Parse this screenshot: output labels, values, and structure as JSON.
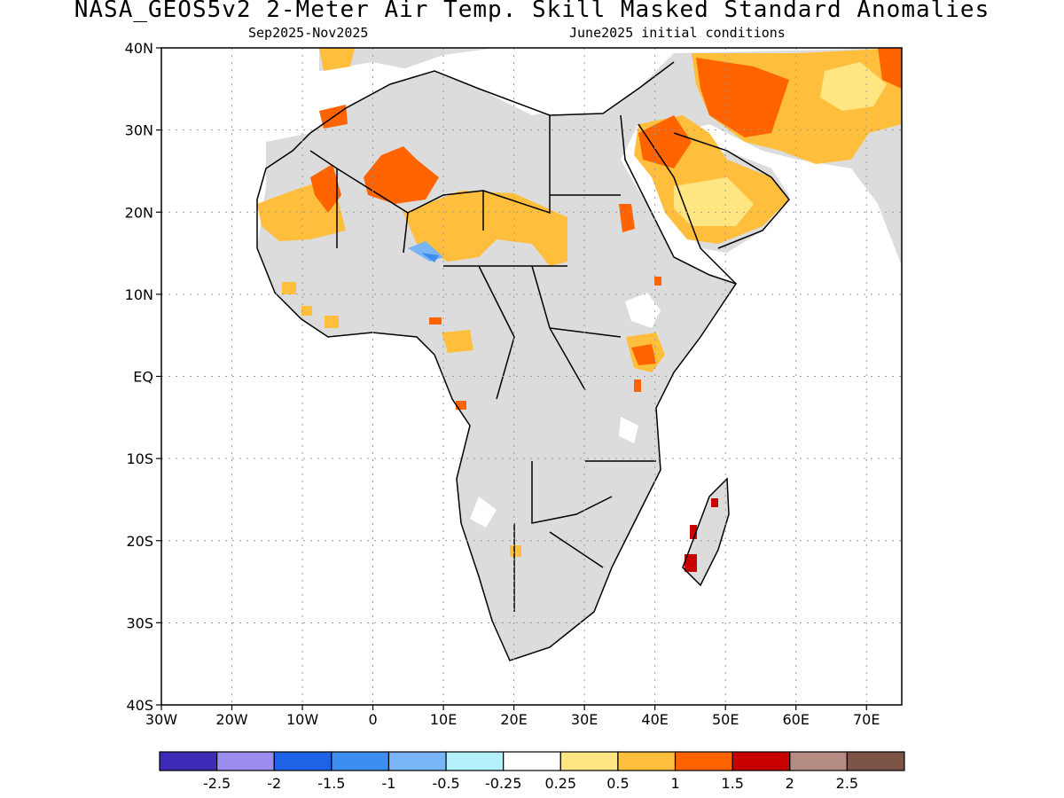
{
  "header": {
    "title": "NASA_GEOS5v2 2-Meter Air Temp. Skill Masked Standard Anomalies",
    "period": "Sep2025-Nov2025",
    "init": "June2025 initial conditions"
  },
  "map": {
    "lon_range": [
      -30,
      75
    ],
    "lat_range": [
      -40,
      40
    ],
    "lon_ticks": [
      {
        "value": -30,
        "label": "30W"
      },
      {
        "value": -20,
        "label": "20W"
      },
      {
        "value": -10,
        "label": "10W"
      },
      {
        "value": 0,
        "label": "0"
      },
      {
        "value": 10,
        "label": "10E"
      },
      {
        "value": 20,
        "label": "20E"
      },
      {
        "value": 30,
        "label": "30E"
      },
      {
        "value": 40,
        "label": "40E"
      },
      {
        "value": 50,
        "label": "50E"
      },
      {
        "value": 60,
        "label": "60E"
      },
      {
        "value": 70,
        "label": "70E"
      }
    ],
    "lat_ticks": [
      {
        "value": 40,
        "label": "40N"
      },
      {
        "value": 30,
        "label": "30N"
      },
      {
        "value": 20,
        "label": "20N"
      },
      {
        "value": 10,
        "label": "10N"
      },
      {
        "value": 0,
        "label": "EQ"
      },
      {
        "value": -10,
        "label": "10S"
      },
      {
        "value": -20,
        "label": "20S"
      },
      {
        "value": -30,
        "label": "30S"
      },
      {
        "value": -40,
        "label": "40S"
      }
    ],
    "colors": {
      "land_masked": "#dcdcdc",
      "ocean": "#ffffff",
      "coast": "#000000",
      "grid": "#9a9a9a"
    }
  },
  "colorbar": {
    "colors": [
      "#3d2bb8",
      "#9b8cf0",
      "#1e62e6",
      "#3c8ff0",
      "#78b4f6",
      "#b4f0fa",
      "#ffffff",
      "#ffe682",
      "#ffbe3c",
      "#ff6400",
      "#c80000",
      "#b48c82",
      "#7d5546"
    ],
    "labels": [
      "-2.5",
      "-2",
      "-1.5",
      "-1",
      "-0.5",
      "-0.25",
      "0.25",
      "0.5",
      "1",
      "1.5",
      "2",
      "2.5"
    ]
  }
}
